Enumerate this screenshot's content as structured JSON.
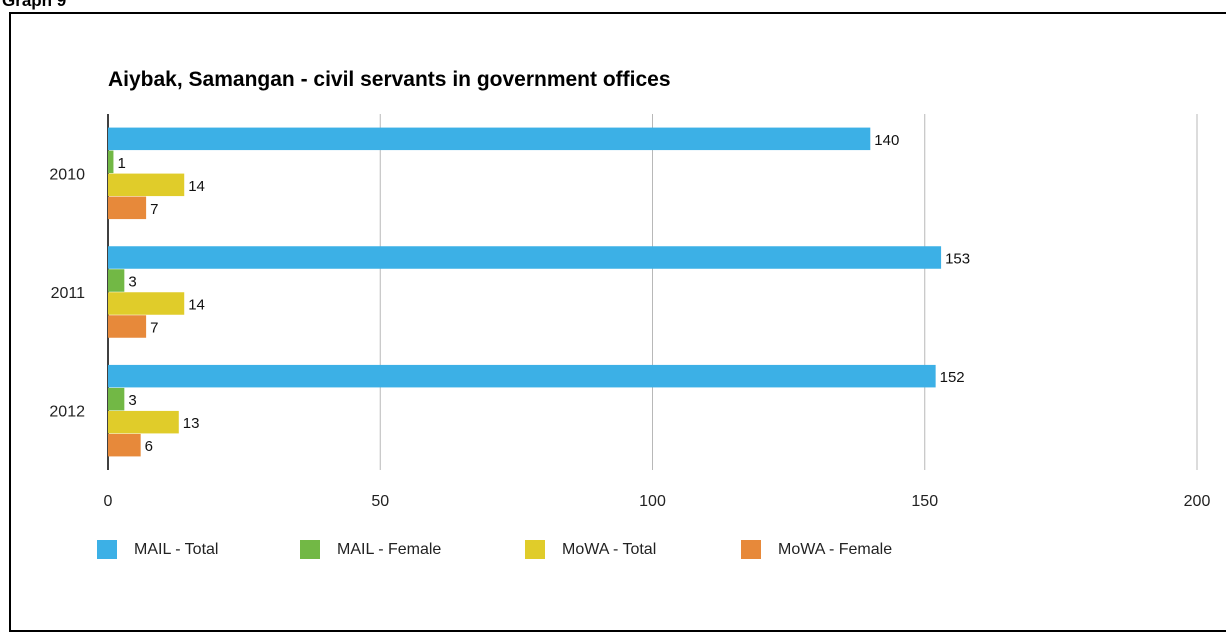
{
  "caption": "Graph 9",
  "chart_data": {
    "type": "bar",
    "orientation": "horizontal",
    "title": "Aiybak, Samangan - civil servants in government offices",
    "categories": [
      "2010",
      "2011",
      "2012"
    ],
    "series": [
      {
        "name": "MAIL - Total",
        "color": "#3cb0e6",
        "values": [
          140,
          153,
          152
        ]
      },
      {
        "name": "MAIL - Female",
        "color": "#72b845",
        "values": [
          1,
          3,
          3
        ]
      },
      {
        "name": "MoWA - Total",
        "color": "#e0cc2a",
        "values": [
          14,
          14,
          13
        ]
      },
      {
        "name": "MoWA - Female",
        "color": "#e7893a",
        "values": [
          7,
          7,
          6
        ]
      }
    ],
    "xlim": [
      0,
      200
    ],
    "x_ticks": [
      "0",
      "50",
      "100",
      "150",
      "200"
    ],
    "grid": true,
    "data_labels": true,
    "legend_position": "bottom"
  }
}
